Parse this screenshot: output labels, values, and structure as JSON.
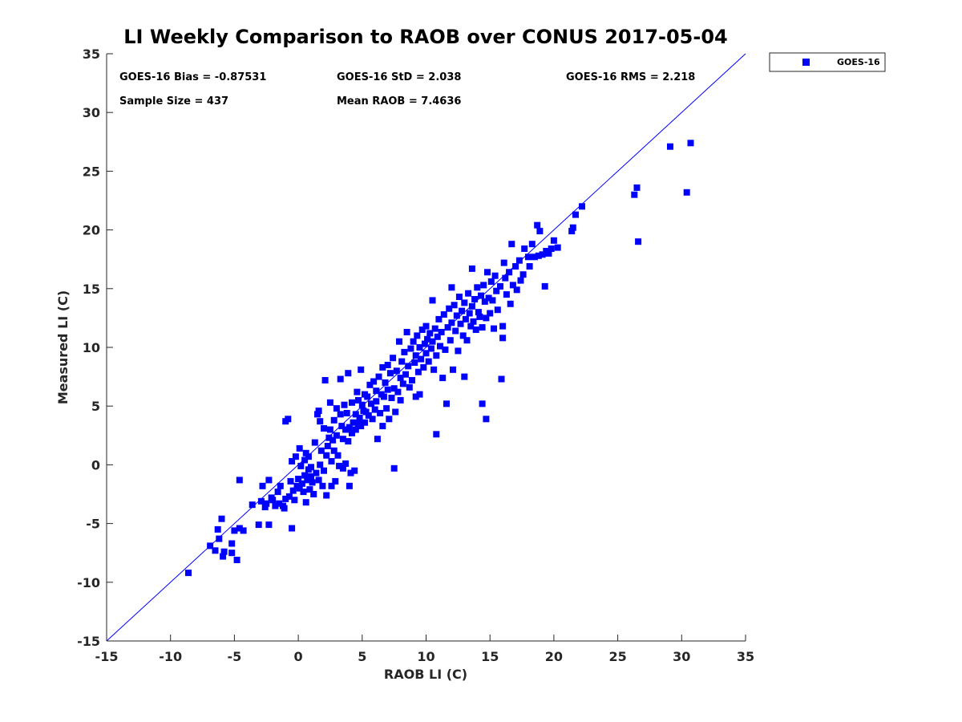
{
  "chart_data": {
    "type": "scatter",
    "title": "LI Weekly Comparison to RAOB over CONUS 2017-05-04",
    "xlabel": "RAOB LI (C)",
    "ylabel": "Measured LI (C)",
    "xlim": [
      -15,
      35
    ],
    "ylim": [
      -15,
      35
    ],
    "xticks": [
      "-15",
      "-10",
      "-5",
      "0",
      "5",
      "10",
      "15",
      "20",
      "25",
      "30",
      "35"
    ],
    "yticks": [
      "35",
      "30",
      "25",
      "20",
      "15",
      "10",
      "5",
      "0",
      "-5",
      "-10",
      "-15"
    ],
    "xtick_values": [
      -15,
      -10,
      -5,
      0,
      5,
      10,
      15,
      20,
      25,
      30,
      35
    ],
    "ytick_values": [
      35,
      30,
      25,
      20,
      15,
      10,
      5,
      0,
      -5,
      -10,
      -15
    ],
    "reference_line": {
      "label": "1:1",
      "x": [
        -15,
        35
      ],
      "y": [
        -15,
        35
      ],
      "color": "#0000ff"
    },
    "legend": {
      "position": "top-right-outside",
      "entries": [
        "GOES-16"
      ]
    },
    "series_color": "#0000ff",
    "stats": {
      "bias": "GOES-16 Bias = -0.87531",
      "std": "GOES-16 StD = 2.038",
      "rms": "GOES-16 RMS = 2.218",
      "sample": "Sample Size = 437",
      "mean": "Mean RAOB = 7.4636"
    },
    "series": [
      {
        "name": "GOES-16",
        "points": [
          [
            -8.6,
            -9.2
          ],
          [
            -6.9,
            -6.9
          ],
          [
            -6.5,
            -7.3
          ],
          [
            -6.3,
            -5.5
          ],
          [
            -6.2,
            -6.3
          ],
          [
            -6.0,
            -4.6
          ],
          [
            -5.9,
            -7.8
          ],
          [
            -5.8,
            -7.4
          ],
          [
            -5.2,
            -7.5
          ],
          [
            -5.2,
            -6.7
          ],
          [
            -5.0,
            -5.6
          ],
          [
            -4.8,
            -8.1
          ],
          [
            -4.6,
            -5.4
          ],
          [
            -4.6,
            -1.3
          ],
          [
            -4.3,
            -5.6
          ],
          [
            -3.6,
            -3.4
          ],
          [
            -3.1,
            -5.1
          ],
          [
            -2.9,
            -3.1
          ],
          [
            -2.8,
            -1.8
          ],
          [
            -2.6,
            -3.6
          ],
          [
            -2.5,
            -3.3
          ],
          [
            -2.3,
            -5.1
          ],
          [
            -2.3,
            -1.3
          ],
          [
            -2.1,
            -2.8
          ],
          [
            -2.0,
            -3.0
          ],
          [
            -1.8,
            -3.5
          ],
          [
            -1.6,
            -2.3
          ],
          [
            -1.5,
            -3.3
          ],
          [
            -1.4,
            -1.8
          ],
          [
            -1.2,
            -3.5
          ],
          [
            -1.1,
            -3.7
          ],
          [
            -1.0,
            -2.9
          ],
          [
            -1.0,
            3.7
          ],
          [
            -0.8,
            3.9
          ],
          [
            -0.7,
            -2.7
          ],
          [
            -0.6,
            -1.4
          ],
          [
            -0.5,
            -5.4
          ],
          [
            -0.5,
            0.3
          ],
          [
            -0.4,
            -2.2
          ],
          [
            -0.3,
            -3.0
          ],
          [
            -0.2,
            0.7
          ],
          [
            -0.1,
            -1.8
          ],
          [
            0.0,
            -1.2
          ],
          [
            0.1,
            -2.0
          ],
          [
            0.1,
            1.4
          ],
          [
            0.2,
            -0.1
          ],
          [
            0.3,
            -1.6
          ],
          [
            0.4,
            -2.3
          ],
          [
            0.5,
            -0.9
          ],
          [
            0.5,
            0.4
          ],
          [
            0.6,
            1.0
          ],
          [
            0.6,
            -3.2
          ],
          [
            0.7,
            -1.3
          ],
          [
            0.8,
            -0.4
          ],
          [
            0.8,
            0.7
          ],
          [
            0.9,
            -2.1
          ],
          [
            1.0,
            -1.0
          ],
          [
            1.0,
            -0.2
          ],
          [
            1.1,
            -1.5
          ],
          [
            1.2,
            -2.5
          ],
          [
            1.3,
            1.9
          ],
          [
            1.4,
            -0.7
          ],
          [
            1.5,
            4.3
          ],
          [
            1.6,
            4.6
          ],
          [
            1.6,
            -1.3
          ],
          [
            1.7,
            3.7
          ],
          [
            1.7,
            0.0
          ],
          [
            1.8,
            1.2
          ],
          [
            1.9,
            -1.8
          ],
          [
            2.0,
            -0.5
          ],
          [
            2.0,
            3.1
          ],
          [
            2.1,
            7.2
          ],
          [
            2.2,
            -2.6
          ],
          [
            2.2,
            0.8
          ],
          [
            2.3,
            1.6
          ],
          [
            2.4,
            2.3
          ],
          [
            2.5,
            3.0
          ],
          [
            2.5,
            5.3
          ],
          [
            2.6,
            -1.8
          ],
          [
            2.6,
            0.3
          ],
          [
            2.7,
            2.1
          ],
          [
            2.8,
            1.2
          ],
          [
            2.8,
            3.8
          ],
          [
            2.9,
            -1.4
          ],
          [
            3.0,
            2.5
          ],
          [
            3.0,
            4.8
          ],
          [
            3.1,
            0.8
          ],
          [
            3.2,
            -0.1
          ],
          [
            3.3,
            4.3
          ],
          [
            3.3,
            7.3
          ],
          [
            3.4,
            3.3
          ],
          [
            3.5,
            -0.3
          ],
          [
            3.5,
            2.2
          ],
          [
            3.6,
            5.1
          ],
          [
            3.7,
            3.0
          ],
          [
            3.7,
            0.1
          ],
          [
            3.8,
            4.4
          ],
          [
            3.9,
            2.0
          ],
          [
            3.9,
            7.8
          ],
          [
            4.0,
            -1.8
          ],
          [
            4.0,
            3.2
          ],
          [
            4.1,
            -0.7
          ],
          [
            4.2,
            5.3
          ],
          [
            4.2,
            2.7
          ],
          [
            4.3,
            3.6
          ],
          [
            4.4,
            -0.5
          ],
          [
            4.5,
            4.3
          ],
          [
            4.5,
            3.0
          ],
          [
            4.6,
            6.2
          ],
          [
            4.7,
            3.5
          ],
          [
            4.7,
            5.5
          ],
          [
            4.8,
            4.0
          ],
          [
            4.9,
            3.3
          ],
          [
            4.9,
            8.1
          ],
          [
            5.0,
            5.1
          ],
          [
            5.1,
            4.6
          ],
          [
            5.2,
            6.0
          ],
          [
            5.2,
            3.6
          ],
          [
            5.3,
            4.5
          ],
          [
            5.4,
            5.8
          ],
          [
            5.5,
            4.2
          ],
          [
            5.6,
            6.8
          ],
          [
            5.7,
            5.2
          ],
          [
            5.8,
            3.9
          ],
          [
            5.9,
            7.1
          ],
          [
            6.0,
            4.7
          ],
          [
            6.1,
            6.3
          ],
          [
            6.1,
            5.4
          ],
          [
            6.2,
            2.2
          ],
          [
            6.3,
            7.5
          ],
          [
            6.4,
            4.4
          ],
          [
            6.5,
            6.0
          ],
          [
            6.6,
            8.3
          ],
          [
            6.6,
            3.3
          ],
          [
            6.7,
            5.8
          ],
          [
            6.8,
            7.0
          ],
          [
            6.9,
            4.8
          ],
          [
            7.0,
            8.5
          ],
          [
            7.0,
            6.4
          ],
          [
            7.1,
            3.9
          ],
          [
            7.2,
            7.8
          ],
          [
            7.3,
            5.7
          ],
          [
            7.4,
            9.1
          ],
          [
            7.5,
            6.5
          ],
          [
            7.5,
            -0.3
          ],
          [
            7.6,
            4.5
          ],
          [
            7.7,
            8.0
          ],
          [
            7.8,
            6.2
          ],
          [
            7.9,
            10.5
          ],
          [
            8.0,
            7.4
          ],
          [
            8.0,
            5.5
          ],
          [
            8.1,
            8.8
          ],
          [
            8.2,
            6.9
          ],
          [
            8.3,
            9.6
          ],
          [
            8.4,
            7.7
          ],
          [
            8.5,
            11.3
          ],
          [
            8.6,
            8.4
          ],
          [
            8.7,
            6.6
          ],
          [
            8.8,
            9.9
          ],
          [
            8.9,
            7.2
          ],
          [
            9.0,
            10.5
          ],
          [
            9.1,
            8.7
          ],
          [
            9.2,
            5.8
          ],
          [
            9.2,
            9.3
          ],
          [
            9.3,
            11.0
          ],
          [
            9.4,
            7.9
          ],
          [
            9.5,
            10.0
          ],
          [
            9.5,
            6.0
          ],
          [
            9.6,
            9.0
          ],
          [
            9.7,
            11.5
          ],
          [
            9.8,
            8.3
          ],
          [
            9.9,
            10.3
          ],
          [
            10.0,
            9.5
          ],
          [
            10.0,
            11.8
          ],
          [
            10.1,
            10.7
          ],
          [
            10.2,
            8.8
          ],
          [
            10.3,
            11.2
          ],
          [
            10.4,
            9.9
          ],
          [
            10.5,
            10.5
          ],
          [
            10.5,
            14.0
          ],
          [
            10.6,
            8.1
          ],
          [
            10.7,
            11.6
          ],
          [
            10.8,
            9.3
          ],
          [
            10.8,
            2.6
          ],
          [
            10.9,
            10.9
          ],
          [
            11.0,
            12.4
          ],
          [
            11.1,
            10.1
          ],
          [
            11.2,
            11.3
          ],
          [
            11.3,
            7.4
          ],
          [
            11.4,
            12.8
          ],
          [
            11.5,
            9.8
          ],
          [
            11.6,
            5.2
          ],
          [
            11.7,
            11.7
          ],
          [
            11.8,
            13.3
          ],
          [
            11.9,
            10.6
          ],
          [
            12.0,
            12.1
          ],
          [
            12.0,
            15.1
          ],
          [
            12.1,
            8.1
          ],
          [
            12.2,
            13.6
          ],
          [
            12.3,
            11.4
          ],
          [
            12.4,
            12.7
          ],
          [
            12.5,
            9.7
          ],
          [
            12.6,
            14.3
          ],
          [
            12.7,
            12.0
          ],
          [
            12.8,
            13.1
          ],
          [
            12.9,
            11.0
          ],
          [
            13.0,
            7.5
          ],
          [
            13.0,
            13.8
          ],
          [
            13.1,
            12.4
          ],
          [
            13.2,
            10.6
          ],
          [
            13.3,
            14.6
          ],
          [
            13.4,
            12.9
          ],
          [
            13.5,
            11.8
          ],
          [
            13.6,
            16.7
          ],
          [
            13.6,
            13.5
          ],
          [
            13.7,
            12.2
          ],
          [
            13.8,
            14.1
          ],
          [
            13.9,
            11.5
          ],
          [
            14.0,
            15.1
          ],
          [
            14.1,
            13.0
          ],
          [
            14.2,
            12.6
          ],
          [
            14.3,
            14.4
          ],
          [
            14.4,
            11.7
          ],
          [
            14.4,
            5.2
          ],
          [
            14.5,
            15.3
          ],
          [
            14.6,
            13.9
          ],
          [
            14.7,
            3.9
          ],
          [
            14.7,
            12.5
          ],
          [
            14.8,
            16.4
          ],
          [
            14.9,
            14.2
          ],
          [
            15.0,
            12.9
          ],
          [
            15.1,
            15.6
          ],
          [
            15.2,
            14.0
          ],
          [
            15.3,
            11.6
          ],
          [
            15.4,
            16.1
          ],
          [
            15.5,
            14.8
          ],
          [
            15.6,
            13.2
          ],
          [
            15.8,
            15.2
          ],
          [
            15.9,
            7.3
          ],
          [
            16.0,
            11.8
          ],
          [
            16.0,
            10.8
          ],
          [
            16.1,
            17.2
          ],
          [
            16.2,
            15.9
          ],
          [
            16.3,
            14.5
          ],
          [
            16.5,
            16.4
          ],
          [
            16.6,
            13.7
          ],
          [
            16.7,
            18.8
          ],
          [
            16.8,
            15.3
          ],
          [
            17.0,
            16.9
          ],
          [
            17.1,
            14.9
          ],
          [
            17.3,
            17.4
          ],
          [
            17.4,
            15.7
          ],
          [
            17.6,
            16.2
          ],
          [
            17.7,
            18.4
          ],
          [
            18.0,
            17.7
          ],
          [
            18.1,
            16.9
          ],
          [
            18.3,
            18.8
          ],
          [
            18.5,
            17.7
          ],
          [
            18.7,
            20.4
          ],
          [
            18.8,
            17.8
          ],
          [
            18.9,
            19.9
          ],
          [
            19.1,
            17.9
          ],
          [
            19.3,
            15.2
          ],
          [
            19.4,
            18.2
          ],
          [
            19.6,
            18.0
          ],
          [
            19.8,
            18.4
          ],
          [
            20.0,
            19.1
          ],
          [
            20.3,
            18.5
          ],
          [
            21.4,
            19.9
          ],
          [
            21.5,
            20.2
          ],
          [
            21.7,
            21.3
          ],
          [
            22.2,
            22.0
          ],
          [
            26.3,
            23.0
          ],
          [
            26.5,
            23.6
          ],
          [
            26.6,
            19.0
          ],
          [
            29.1,
            27.1
          ],
          [
            30.4,
            23.2
          ],
          [
            30.7,
            27.4
          ]
        ]
      }
    ]
  }
}
